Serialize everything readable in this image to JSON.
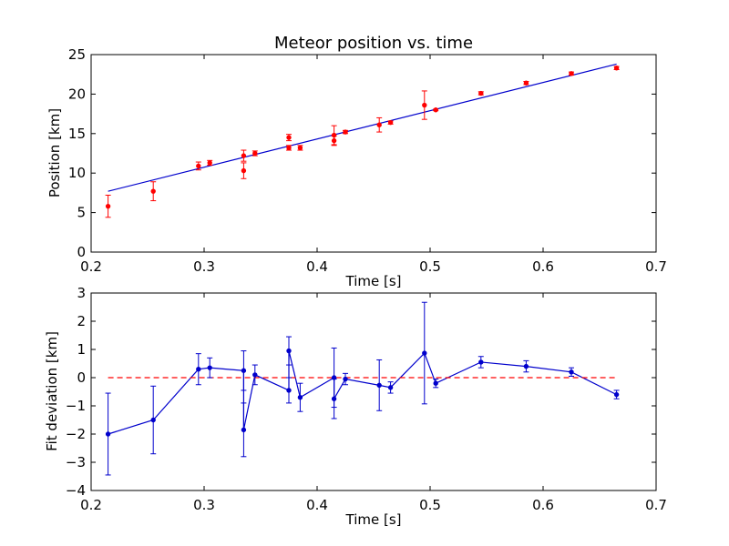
{
  "chart_data": [
    {
      "type": "scatter",
      "title": "Meteor position vs. time",
      "xlabel": "Time [s]",
      "ylabel": "Position [km]",
      "xlim": [
        0.2,
        0.7
      ],
      "ylim": [
        0,
        25
      ],
      "xticks": [
        "0.2",
        "0.3",
        "0.4",
        "0.5",
        "0.6",
        "0.7"
      ],
      "yticks": [
        "0",
        "5",
        "10",
        "15",
        "20",
        "25"
      ],
      "grid": false,
      "colors": {
        "points": "#ff0000",
        "fit": "#0000cc"
      },
      "series": [
        {
          "kind": "errorbar-points",
          "x": [
            0.215,
            0.255,
            0.295,
            0.305,
            0.335,
            0.335,
            0.345,
            0.375,
            0.375,
            0.385,
            0.415,
            0.415,
            0.425,
            0.455,
            0.465,
            0.495,
            0.505,
            0.545,
            0.585,
            0.625,
            0.665
          ],
          "y": [
            5.8,
            7.7,
            10.9,
            11.3,
            12.2,
            10.3,
            12.5,
            13.2,
            14.5,
            13.2,
            14.8,
            14.1,
            15.2,
            16.1,
            16.4,
            18.6,
            18.0,
            20.1,
            21.4,
            22.6,
            23.3
          ],
          "yerr": [
            1.4,
            1.2,
            0.5,
            0.3,
            0.7,
            1.0,
            0.3,
            0.3,
            0.4,
            0.3,
            1.2,
            0.6,
            0.2,
            0.9,
            0.2,
            1.8,
            0.1,
            0.2,
            0.2,
            0.2,
            0.2
          ]
        },
        {
          "kind": "fit-line",
          "x": [
            0.215,
            0.665
          ],
          "y": [
            7.7,
            23.8
          ]
        }
      ]
    },
    {
      "type": "line",
      "xlabel": "Time [s]",
      "ylabel": "Fit deviation [km]",
      "xlim": [
        0.2,
        0.7
      ],
      "ylim": [
        -4,
        3
      ],
      "xticks": [
        "0.2",
        "0.3",
        "0.4",
        "0.5",
        "0.6",
        "0.7"
      ],
      "yticks": [
        "−4",
        "−3",
        "−2",
        "−1",
        "0",
        "1",
        "2",
        "3"
      ],
      "grid": false,
      "colors": {
        "line": "#0000cc",
        "zero": "#ff0000"
      },
      "series": [
        {
          "kind": "errorbar-line",
          "x": [
            0.215,
            0.255,
            0.295,
            0.305,
            0.335,
            0.335,
            0.345,
            0.375,
            0.375,
            0.385,
            0.415,
            0.415,
            0.425,
            0.455,
            0.465,
            0.495,
            0.505,
            0.545,
            0.585,
            0.625,
            0.665
          ],
          "y": [
            -2.0,
            -1.5,
            0.3,
            0.35,
            0.25,
            -1.85,
            0.1,
            -0.45,
            0.95,
            -0.7,
            0.0,
            -0.75,
            -0.05,
            -0.27,
            -0.35,
            0.87,
            -0.2,
            0.55,
            0.4,
            0.2,
            -0.6
          ],
          "yerr": [
            1.45,
            1.2,
            0.55,
            0.35,
            0.7,
            0.95,
            0.35,
            0.45,
            0.5,
            0.5,
            1.05,
            0.7,
            0.2,
            0.9,
            0.2,
            1.8,
            0.15,
            0.2,
            0.2,
            0.15,
            0.15
          ]
        },
        {
          "kind": "zero-line",
          "x": [
            0.215,
            0.665
          ],
          "y": [
            0,
            0
          ]
        }
      ]
    }
  ]
}
